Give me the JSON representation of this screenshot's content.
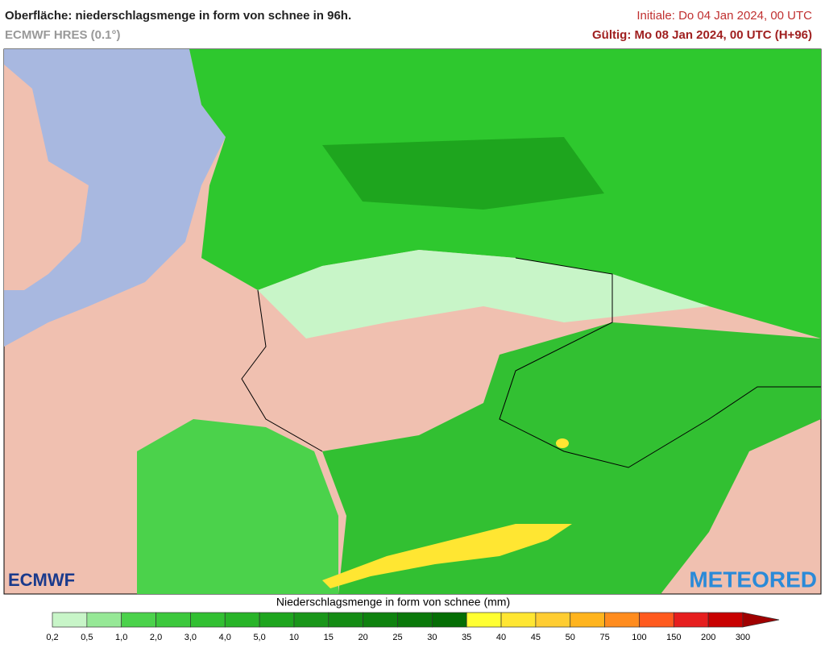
{
  "header": {
    "title": "Oberfläche: niederschlagsmenge in form von schnee in 96h.",
    "model": "ECMWF HRES (0.1°)",
    "init": "Initiale: Do 04 Jan 2024, 00 UTC",
    "valid": "Gültig: Mo 08 Jan 2024, 00 UTC (H+96)"
  },
  "logos": {
    "left": "ECMWF",
    "right": "METEORED"
  },
  "legend": {
    "title": "Niederschlagsmenge in form von schnee (mm)",
    "labels": [
      "0,2",
      "0,5",
      "1,0",
      "2,0",
      "3,0",
      "4,0",
      "5,0",
      "10",
      "15",
      "20",
      "25",
      "30",
      "35",
      "40",
      "45",
      "50",
      "75",
      "100",
      "150",
      "200",
      "300"
    ],
    "colors": [
      "#c8f5c8",
      "#96e896",
      "#4bd24b",
      "#3cc83c",
      "#32c032",
      "#28b428",
      "#1ea51e",
      "#199619",
      "#148c14",
      "#0f820f",
      "#0a780a",
      "#056e05",
      "#ffff32",
      "#ffe632",
      "#ffcd32",
      "#ffb41e",
      "#ff8c1e",
      "#ff5a1e",
      "#e61e1e",
      "#c80000",
      "#a00000"
    ]
  }
}
